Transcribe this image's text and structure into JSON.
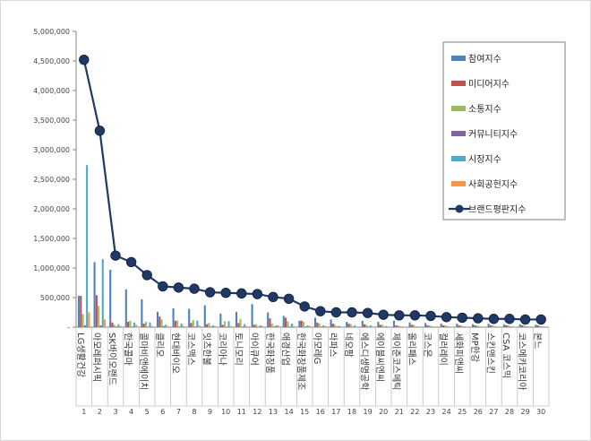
{
  "chart_data": {
    "type": "bar",
    "title": "",
    "xlabel": "",
    "ylabel": "",
    "ylim": [
      0,
      5000000
    ],
    "yticks": [
      0,
      500000,
      1000000,
      1500000,
      2000000,
      2500000,
      3000000,
      3500000,
      4000000,
      4500000,
      5000000
    ],
    "ytick_labels": [
      "-",
      "500,000",
      "1,000,000",
      "1,500,000",
      "2,000,000",
      "2,500,000",
      "3,000,000",
      "3,500,000",
      "4,000,000",
      "4,500,000",
      "5,000,000"
    ],
    "grid": false,
    "legend_position": "top-right",
    "categories": [
      "LG생활건강",
      "아모레퍼시픽",
      "SK바이오랜드",
      "한국콜마",
      "콜마비앤에이치",
      "클리오",
      "현대바이오",
      "코스맥스",
      "잇츠한불",
      "코리아나",
      "토니모리",
      "아이큐어",
      "한국화장품",
      "애경산업",
      "한국화장품제조",
      "아모레G",
      "라파스",
      "네오팜",
      "에스디생명공학",
      "에이블씨엔씨",
      "제이준코스메틱",
      "올리패스",
      "코스온",
      "컬러레이",
      "세화피앤씨",
      "MP한강",
      "스킨앤스킨",
      "CSA 코스믹",
      "코스메카코리아",
      "본느"
    ],
    "category_numbers": [
      "1",
      "2",
      "3",
      "4",
      "5",
      "6",
      "7",
      "8",
      "9",
      "10",
      "11",
      "12",
      "13",
      "14",
      "15",
      "16",
      "17",
      "18",
      "19",
      "20",
      "21",
      "22",
      "23",
      "24",
      "25",
      "26",
      "27",
      "28",
      "29",
      "30"
    ],
    "series": [
      {
        "name": "참여지수",
        "type": "bar",
        "color": "#4f81bd",
        "values": [
          530000,
          1100000,
          970000,
          640000,
          470000,
          260000,
          320000,
          310000,
          370000,
          230000,
          260000,
          390000,
          250000,
          190000,
          110000,
          160000,
          130000,
          90000,
          110000,
          90000,
          110000,
          80000,
          70000,
          60000,
          60000,
          50000,
          60000,
          50000,
          50000,
          40000
        ]
      },
      {
        "name": "미디어지수",
        "type": "bar",
        "color": "#c0504d",
        "values": [
          530000,
          540000,
          80000,
          90000,
          60000,
          180000,
          110000,
          70000,
          50000,
          40000,
          70000,
          40000,
          150000,
          160000,
          110000,
          80000,
          60000,
          60000,
          50000,
          40000,
          30000,
          40000,
          30000,
          30000,
          30000,
          30000,
          30000,
          30000,
          30000,
          30000
        ]
      },
      {
        "name": "소통지수",
        "type": "bar",
        "color": "#9bbb59",
        "values": [
          220000,
          360000,
          40000,
          110000,
          90000,
          130000,
          110000,
          120000,
          70000,
          100000,
          140000,
          50000,
          60000,
          100000,
          90000,
          60000,
          40000,
          50000,
          40000,
          40000,
          30000,
          40000,
          30000,
          30000,
          30000,
          30000,
          30000,
          30000,
          30000,
          20000
        ]
      },
      {
        "name": "커뮤니티지수",
        "type": "bar",
        "color": "#8064a2",
        "values": [
          30000,
          30000,
          10000,
          10000,
          10000,
          20000,
          10000,
          10000,
          10000,
          10000,
          10000,
          10000,
          10000,
          10000,
          10000,
          10000,
          10000,
          10000,
          10000,
          10000,
          10000,
          10000,
          10000,
          10000,
          10000,
          10000,
          10000,
          10000,
          10000,
          10000
        ]
      },
      {
        "name": "시장지수",
        "type": "bar",
        "color": "#4bacc6",
        "values": [
          2740000,
          1150000,
          50000,
          80000,
          80000,
          40000,
          60000,
          110000,
          30000,
          100000,
          50000,
          30000,
          30000,
          60000,
          30000,
          30000,
          20000,
          30000,
          30000,
          20000,
          10000,
          10000,
          10000,
          10000,
          10000,
          10000,
          10000,
          10000,
          10000,
          10000
        ]
      },
      {
        "name": "사회공헌지수",
        "type": "bar",
        "color": "#f79646",
        "values": [
          250000,
          130000,
          20000,
          40000,
          20000,
          20000,
          20000,
          30000,
          20000,
          20000,
          20000,
          20000,
          30000,
          20000,
          20000,
          20000,
          10000,
          10000,
          10000,
          10000,
          10000,
          10000,
          10000,
          10000,
          10000,
          10000,
          10000,
          10000,
          10000,
          10000
        ]
      },
      {
        "name": "브랜드평판지수",
        "type": "line",
        "color": "#1f3864",
        "values": [
          4520000,
          3320000,
          1210000,
          1100000,
          880000,
          690000,
          670000,
          650000,
          590000,
          580000,
          570000,
          560000,
          510000,
          480000,
          350000,
          270000,
          250000,
          250000,
          240000,
          210000,
          200000,
          200000,
          190000,
          170000,
          160000,
          150000,
          140000,
          140000,
          130000,
          130000
        ]
      }
    ]
  }
}
